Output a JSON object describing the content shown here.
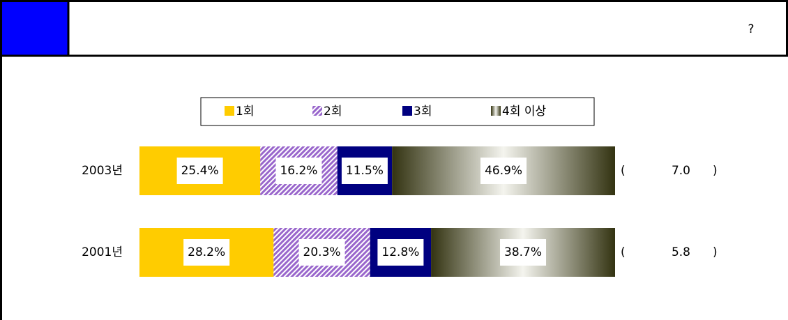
{
  "header": {
    "title": "?"
  },
  "chart_data": {
    "type": "stacked-bar-horizontal",
    "categories": [
      "2003년",
      "2001년"
    ],
    "series": [
      {
        "name": "1회",
        "color": "#ffcc00",
        "values": [
          25.4,
          28.2
        ],
        "value_labels": [
          "25.4%",
          "28.2%"
        ]
      },
      {
        "name": "2회",
        "color": "#9966cc",
        "values": [
          16.2,
          20.3
        ],
        "value_labels": [
          "16.2%",
          "20.3%"
        ]
      },
      {
        "name": "3회",
        "color": "#000080",
        "values": [
          11.5,
          12.8
        ],
        "value_labels": [
          "11.5%",
          "12.8%"
        ]
      },
      {
        "name": "4회 이상",
        "color": "#333311",
        "values": [
          46.9,
          38.7
        ],
        "value_labels": [
          "46.9%",
          "38.7%"
        ]
      }
    ],
    "annotations": [
      "7.0",
      "5.8"
    ]
  }
}
